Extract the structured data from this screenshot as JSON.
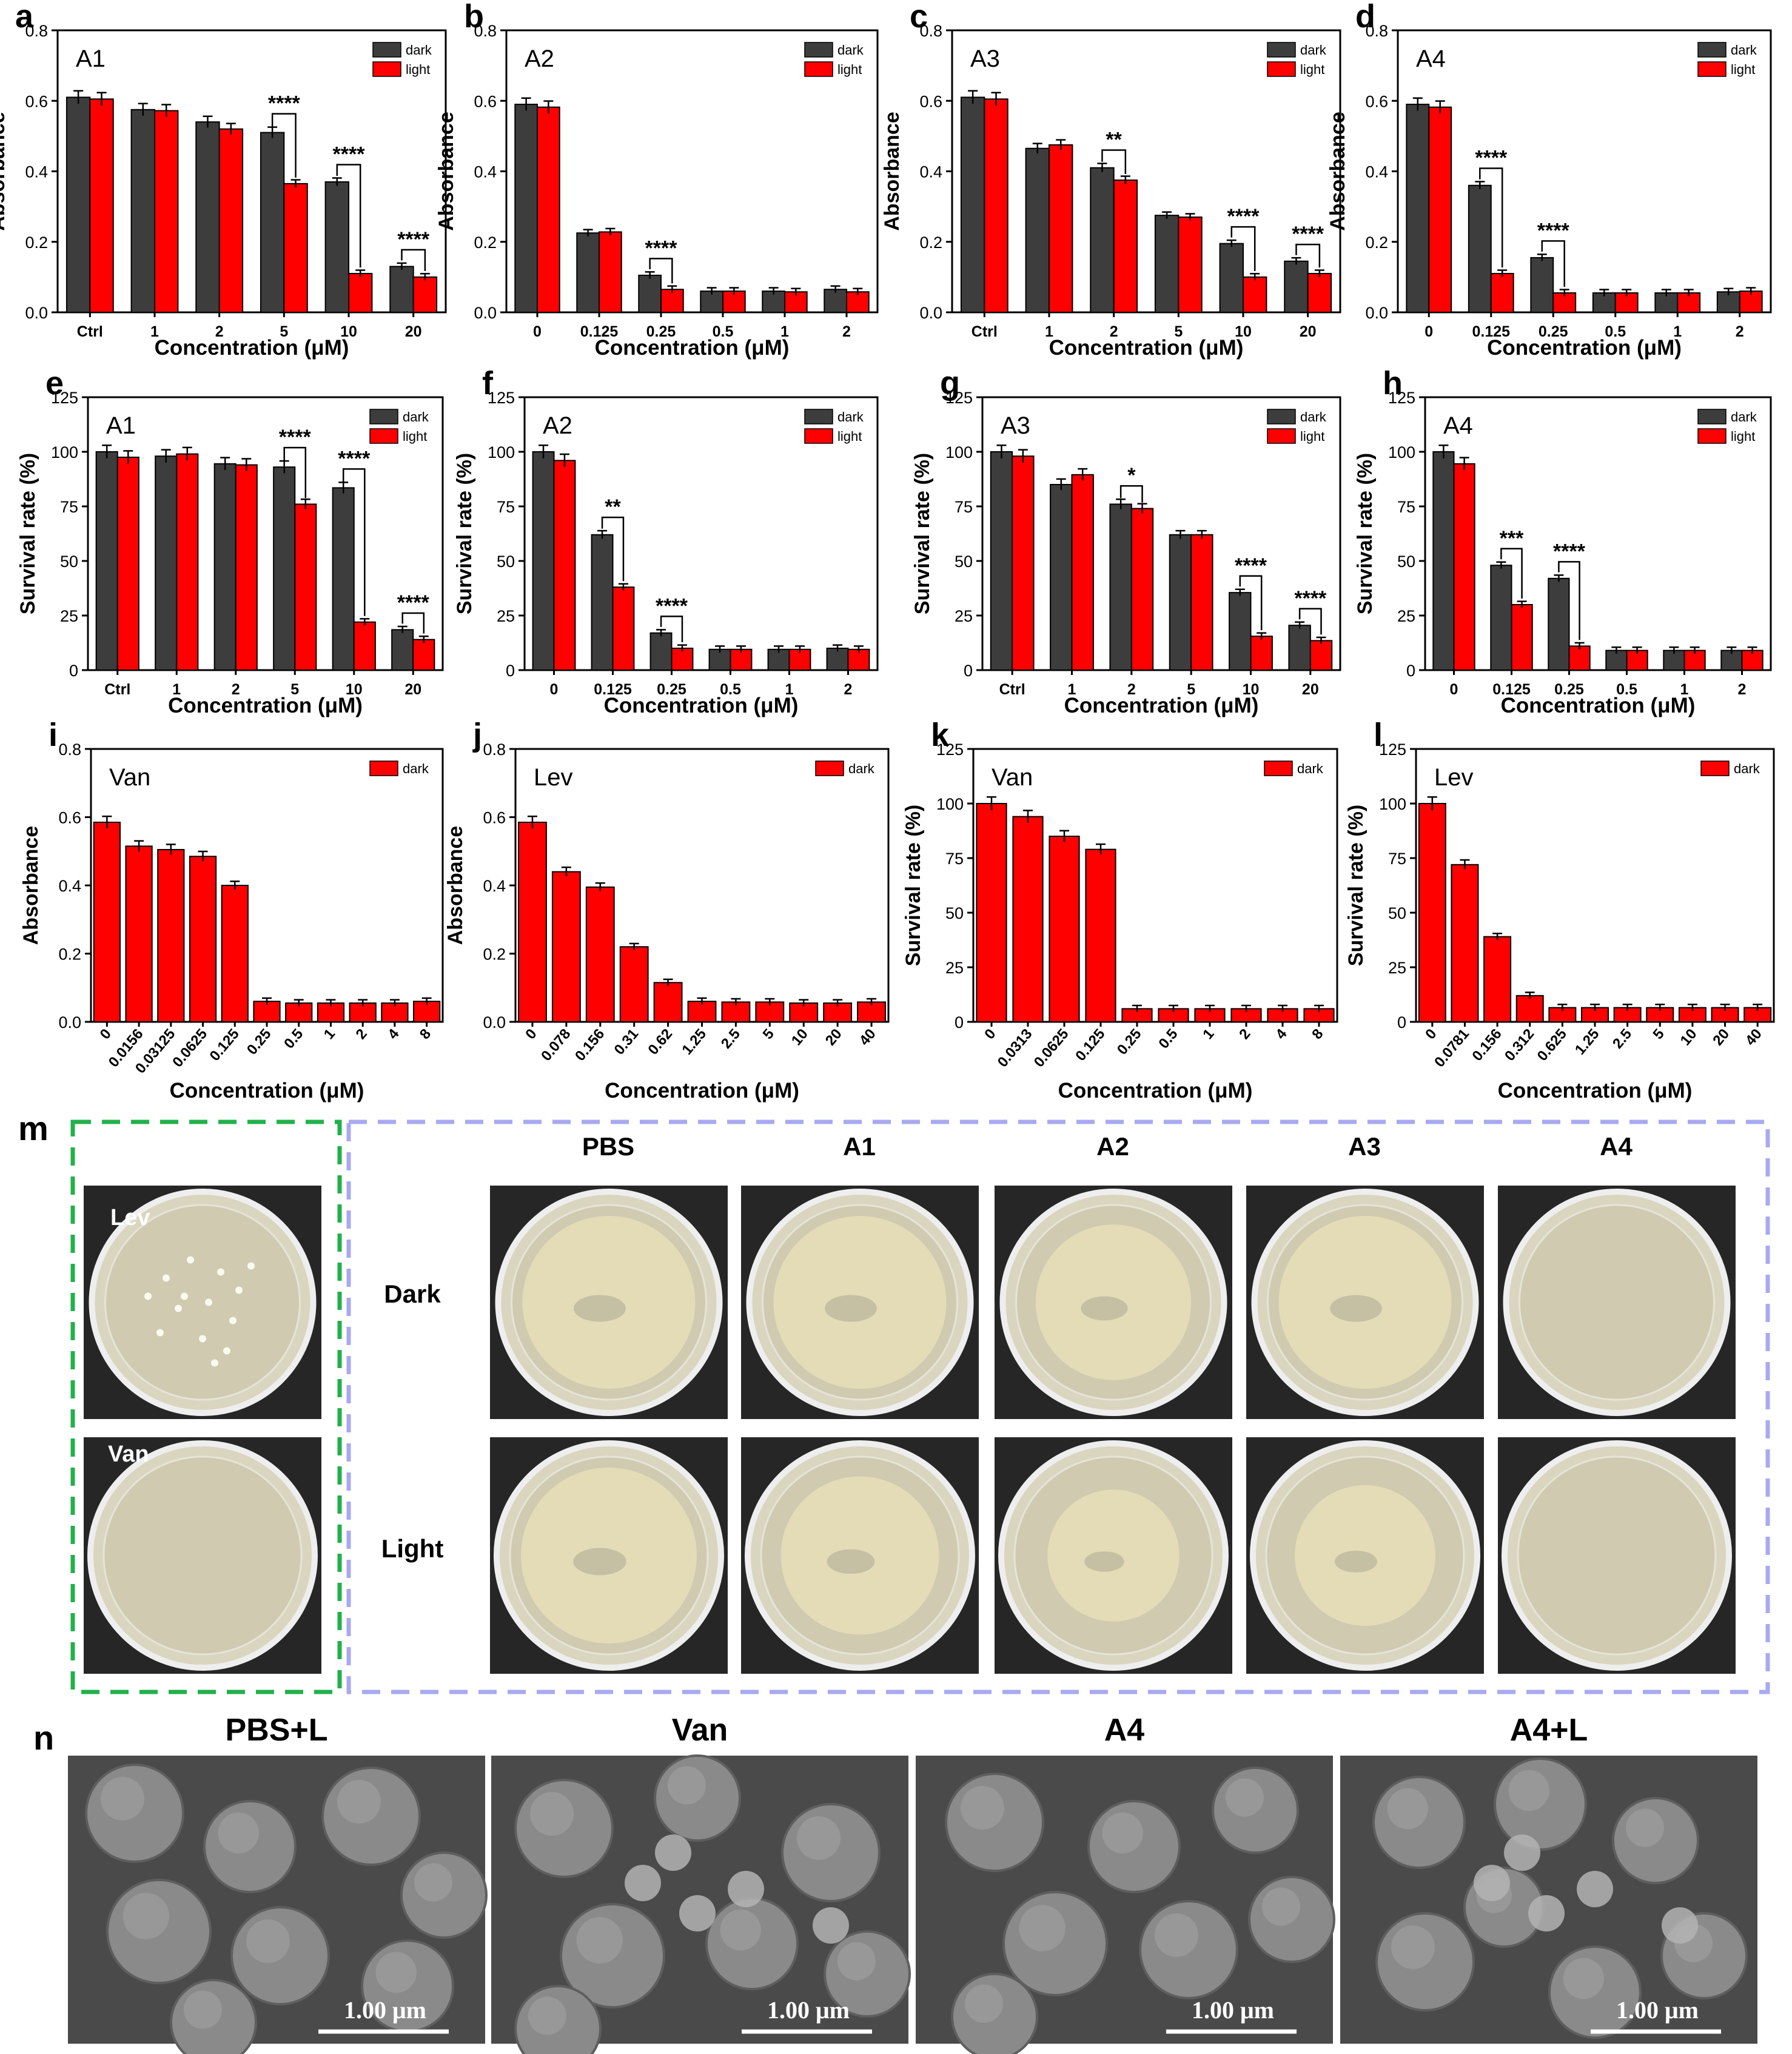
{
  "panel_letters": [
    "a",
    "b",
    "c",
    "d",
    "e",
    "f",
    "g",
    "h",
    "i",
    "j",
    "k",
    "l",
    "m",
    "n"
  ],
  "common": {
    "xlabel": "Concentration (μM)",
    "legend_dark": "dark",
    "legend_light": "light",
    "color_dark": "#3d3d3d",
    "color_light": "#ff0000"
  },
  "chart_data": [
    {
      "type": "bar",
      "panel": "a",
      "inset": "A1",
      "ylabel": "Absorbance",
      "xlabel": "Concentration (μM)",
      "ylim": [
        0,
        0.8
      ],
      "yticks": [
        "0.0",
        "0.2",
        "0.4",
        "0.6",
        "0.8"
      ],
      "categories": [
        "Ctrl",
        "1",
        "2",
        "5",
        "10",
        "20"
      ],
      "legend": [
        "dark",
        "light"
      ],
      "series": [
        {
          "name": "dark",
          "values": [
            0.61,
            0.575,
            0.54,
            0.51,
            0.37,
            0.13
          ]
        },
        {
          "name": "light",
          "values": [
            0.605,
            0.572,
            0.52,
            0.365,
            0.11,
            0.1
          ]
        }
      ],
      "sig": [
        {
          "i": 3,
          "text": "****"
        },
        {
          "i": 4,
          "text": "****"
        },
        {
          "i": 5,
          "text": "****"
        }
      ]
    },
    {
      "type": "bar",
      "panel": "b",
      "inset": "A2",
      "ylabel": "Absorbance",
      "xlabel": "Concentration (μM)",
      "ylim": [
        0,
        0.8
      ],
      "yticks": [
        "0.0",
        "0.2",
        "0.4",
        "0.6",
        "0.8"
      ],
      "categories": [
        "0",
        "0.125",
        "0.25",
        "0.5",
        "1",
        "2"
      ],
      "legend": [
        "dark",
        "light"
      ],
      "series": [
        {
          "name": "dark",
          "values": [
            0.59,
            0.225,
            0.105,
            0.06,
            0.06,
            0.065
          ]
        },
        {
          "name": "light",
          "values": [
            0.582,
            0.228,
            0.065,
            0.06,
            0.058,
            0.058
          ]
        }
      ],
      "sig": [
        {
          "i": 2,
          "text": "****"
        }
      ]
    },
    {
      "type": "bar",
      "panel": "c",
      "inset": "A3",
      "ylabel": "Absorbance",
      "xlabel": "Concentration (μM)",
      "ylim": [
        0,
        0.8
      ],
      "yticks": [
        "0.0",
        "0.2",
        "0.4",
        "0.6",
        "0.8"
      ],
      "categories": [
        "Ctrl",
        "1",
        "2",
        "5",
        "10",
        "20"
      ],
      "legend": [
        "dark",
        "light"
      ],
      "series": [
        {
          "name": "dark",
          "values": [
            0.61,
            0.465,
            0.41,
            0.275,
            0.195,
            0.145
          ]
        },
        {
          "name": "light",
          "values": [
            0.605,
            0.475,
            0.375,
            0.27,
            0.1,
            0.11
          ]
        }
      ],
      "sig": [
        {
          "i": 2,
          "text": "**"
        },
        {
          "i": 4,
          "text": "****"
        },
        {
          "i": 5,
          "text": "****"
        }
      ]
    },
    {
      "type": "bar",
      "panel": "d",
      "inset": "A4",
      "ylabel": "Absorbance",
      "xlabel": "Concentration (μM)",
      "ylim": [
        0,
        0.8
      ],
      "yticks": [
        "0.0",
        "0.2",
        "0.4",
        "0.6",
        "0.8"
      ],
      "categories": [
        "0",
        "0.125",
        "0.25",
        "0.5",
        "1",
        "2"
      ],
      "legend": [
        "dark",
        "light"
      ],
      "series": [
        {
          "name": "dark",
          "values": [
            0.59,
            0.36,
            0.155,
            0.055,
            0.055,
            0.058
          ]
        },
        {
          "name": "light",
          "values": [
            0.582,
            0.11,
            0.055,
            0.055,
            0.055,
            0.06
          ]
        }
      ],
      "sig": [
        {
          "i": 1,
          "text": "****"
        },
        {
          "i": 2,
          "text": "****"
        }
      ]
    },
    {
      "type": "bar",
      "panel": "e",
      "inset": "A1",
      "ylabel": "Survival rate (%)",
      "xlabel": "Concentration (μM)",
      "ylim": [
        0,
        125
      ],
      "yticks": [
        "0",
        "25",
        "50",
        "75",
        "100",
        "125"
      ],
      "categories": [
        "Ctrl",
        "1",
        "2",
        "5",
        "10",
        "20"
      ],
      "legend": [
        "dark",
        "light"
      ],
      "series": [
        {
          "name": "dark",
          "values": [
            100,
            98,
            94.5,
            93,
            83.5,
            18.5
          ]
        },
        {
          "name": "light",
          "values": [
            97.5,
            99,
            94,
            76,
            22,
            14
          ]
        }
      ],
      "sig": [
        {
          "i": 3,
          "text": "****"
        },
        {
          "i": 4,
          "text": "****"
        },
        {
          "i": 5,
          "text": "****"
        }
      ]
    },
    {
      "type": "bar",
      "panel": "f",
      "inset": "A2",
      "ylabel": "Survival rate (%)",
      "xlabel": "Concentration (μM)",
      "ylim": [
        0,
        125
      ],
      "yticks": [
        "0",
        "25",
        "50",
        "75",
        "100",
        "125"
      ],
      "categories": [
        "0",
        "0.125",
        "0.25",
        "0.5",
        "1",
        "2"
      ],
      "legend": [
        "dark",
        "light"
      ],
      "series": [
        {
          "name": "dark",
          "values": [
            100,
            62,
            17,
            9.5,
            9.5,
            10
          ]
        },
        {
          "name": "light",
          "values": [
            96,
            38,
            10,
            9.5,
            9.5,
            9.5
          ]
        }
      ],
      "sig": [
        {
          "i": 1,
          "text": "**"
        },
        {
          "i": 2,
          "text": "****"
        }
      ]
    },
    {
      "type": "bar",
      "panel": "g",
      "inset": "A3",
      "ylabel": "Survival rate (%)",
      "xlabel": "Concentration (μM)",
      "ylim": [
        0,
        125
      ],
      "yticks": [
        "0",
        "25",
        "50",
        "75",
        "100",
        "125"
      ],
      "categories": [
        "Ctrl",
        "1",
        "2",
        "5",
        "10",
        "20"
      ],
      "legend": [
        "dark",
        "light"
      ],
      "series": [
        {
          "name": "dark",
          "values": [
            100,
            85,
            76,
            62,
            35.5,
            20.5
          ]
        },
        {
          "name": "light",
          "values": [
            98,
            89.5,
            74,
            62,
            15.5,
            13.5
          ]
        }
      ],
      "sig": [
        {
          "i": 2,
          "text": "*"
        },
        {
          "i": 4,
          "text": "****"
        },
        {
          "i": 5,
          "text": "****"
        }
      ]
    },
    {
      "type": "bar",
      "panel": "h",
      "inset": "A4",
      "ylabel": "Survival rate (%)",
      "xlabel": "Concentration (μM)",
      "ylim": [
        0,
        125
      ],
      "yticks": [
        "0",
        "25",
        "50",
        "75",
        "100",
        "125"
      ],
      "categories": [
        "0",
        "0.125",
        "0.25",
        "0.5",
        "1",
        "2"
      ],
      "legend": [
        "dark",
        "light"
      ],
      "series": [
        {
          "name": "dark",
          "values": [
            100,
            48,
            42,
            9,
            9,
            9
          ]
        },
        {
          "name": "light",
          "values": [
            94.5,
            30,
            11,
            9,
            9,
            9
          ]
        }
      ],
      "sig": [
        {
          "i": 1,
          "text": "***"
        },
        {
          "i": 2,
          "text": "****"
        }
      ]
    },
    {
      "type": "bar",
      "panel": "i",
      "inset": "Van",
      "ylabel": "Absorbance",
      "xlabel": "Concentration (μM)",
      "ylim": [
        0,
        0.8
      ],
      "yticks": [
        "0.0",
        "0.2",
        "0.4",
        "0.6",
        "0.8"
      ],
      "categories": [
        "0",
        "0.0156",
        "0.03125",
        "0.0625",
        "0.125",
        "0.25",
        "0.5",
        "1",
        "2",
        "4",
        "8"
      ],
      "legend": [
        "dark"
      ],
      "series": [
        {
          "name": "dark",
          "values": [
            0.585,
            0.515,
            0.505,
            0.485,
            0.4,
            0.06,
            0.055,
            0.055,
            0.055,
            0.055,
            0.06
          ]
        }
      ]
    },
    {
      "type": "bar",
      "panel": "j",
      "inset": "Lev",
      "ylabel": "Absorbance",
      "xlabel": "Concentration (μM)",
      "ylim": [
        0,
        0.8
      ],
      "yticks": [
        "0.0",
        "0.2",
        "0.4",
        "0.6",
        "0.8"
      ],
      "categories": [
        "0",
        "0.078",
        "0.156",
        "0.31",
        "0.62",
        "1.25",
        "2.5",
        "5",
        "10",
        "20",
        "40"
      ],
      "legend": [
        "dark"
      ],
      "series": [
        {
          "name": "dark",
          "values": [
            0.585,
            0.44,
            0.395,
            0.22,
            0.115,
            0.06,
            0.058,
            0.058,
            0.055,
            0.055,
            0.058
          ]
        }
      ]
    },
    {
      "type": "bar",
      "panel": "k",
      "inset": "Van",
      "ylabel": "Survival rate (%)",
      "xlabel": "Concentration (μM)",
      "ylim": [
        0,
        125
      ],
      "yticks": [
        "0",
        "25",
        "50",
        "75",
        "100",
        "125"
      ],
      "categories": [
        "0",
        "0.0313",
        "0.0625",
        "0.125",
        "0.25",
        "0.5",
        "1",
        "2",
        "4",
        "8"
      ],
      "legend": [
        "dark"
      ],
      "series": [
        {
          "name": "dark",
          "values": [
            100,
            94,
            85,
            79,
            6,
            6,
            6,
            6,
            6,
            6
          ]
        }
      ]
    },
    {
      "type": "bar",
      "panel": "l",
      "inset": "Lev",
      "ylabel": "Survival rate (%)",
      "xlabel": "Concentration (μM)",
      "ylim": [
        0,
        125
      ],
      "yticks": [
        "0",
        "25",
        "50",
        "75",
        "100",
        "125"
      ],
      "categories": [
        "0",
        "0.0781",
        "0.156",
        "0.312",
        "0.625",
        "1.25",
        "2.5",
        "5",
        "10",
        "20",
        "40"
      ],
      "legend": [
        "dark"
      ],
      "series": [
        {
          "name": "dark",
          "values": [
            100,
            72,
            39,
            12,
            6.5,
            6.5,
            6.5,
            6.5,
            6.5,
            6.5,
            6.5
          ]
        }
      ]
    }
  ],
  "panel_m": {
    "controls": [
      "Lev",
      "Van"
    ],
    "columns": [
      "PBS",
      "A1",
      "A2",
      "A3",
      "A4"
    ],
    "rows": [
      "Dark",
      "Light"
    ]
  },
  "panel_n": {
    "titles": [
      "PBS+L",
      "Van",
      "A4",
      "A4+L"
    ],
    "scale_label": "1.00 μm"
  }
}
